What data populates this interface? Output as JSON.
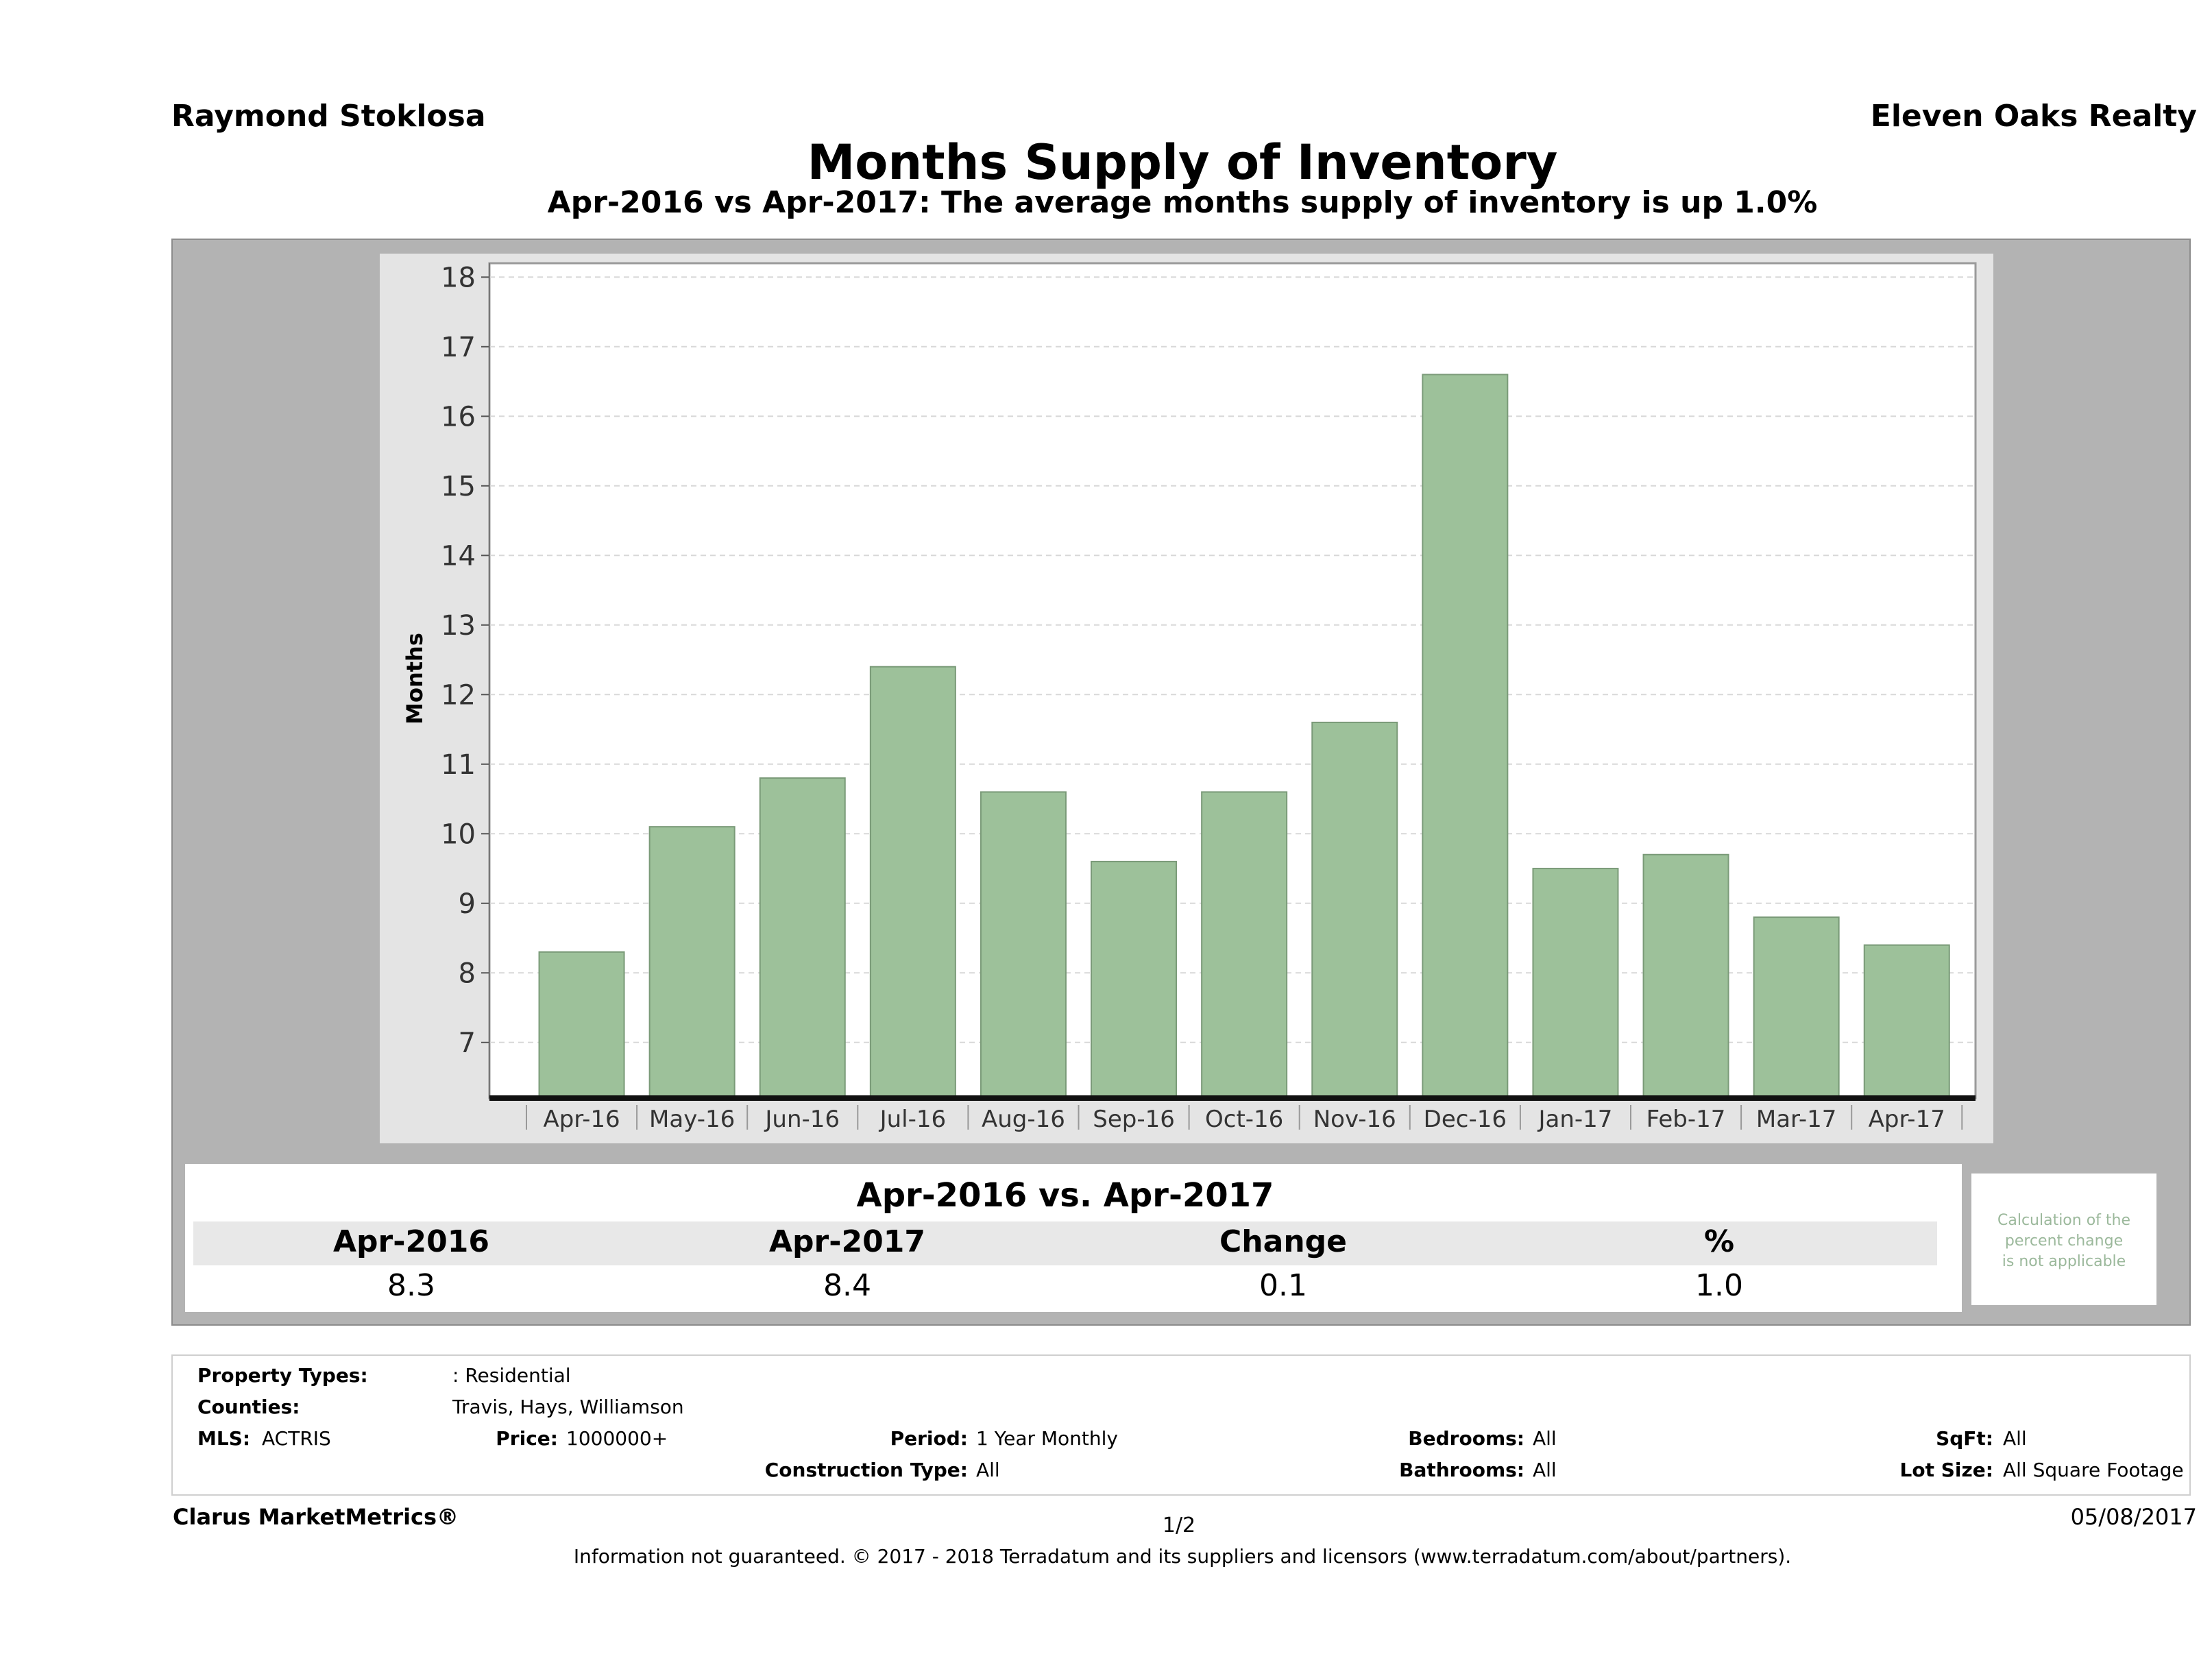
{
  "header": {
    "agent": "Raymond Stoklosa",
    "company": "Eleven Oaks Realty",
    "title": "Months Supply of Inventory",
    "subtitle": "Apr-2016 vs Apr-2017: The average months supply of inventory is up 1.0%"
  },
  "chart_data": {
    "type": "bar",
    "ylabel": "Months",
    "ylim": [
      6.2,
      18.2
    ],
    "yticks": [
      7,
      8,
      9,
      10,
      11,
      12,
      13,
      14,
      15,
      16,
      17,
      18
    ],
    "grid": true,
    "bar_color": "#9dc19a",
    "categories": [
      "Apr-16",
      "May-16",
      "Jun-16",
      "Jul-16",
      "Aug-16",
      "Sep-16",
      "Oct-16",
      "Nov-16",
      "Dec-16",
      "Jan-17",
      "Feb-17",
      "Mar-17",
      "Apr-17"
    ],
    "values": [
      8.3,
      10.1,
      10.8,
      12.4,
      10.6,
      9.6,
      10.6,
      11.6,
      16.6,
      9.5,
      9.7,
      8.8,
      8.4
    ]
  },
  "summary": {
    "title": "Apr-2016 vs. Apr-2017",
    "headers": [
      "Apr-2016",
      "Apr-2017",
      "Change",
      "%"
    ],
    "values": [
      "8.3",
      "8.4",
      "0.1",
      "1.0"
    ],
    "note_lines": [
      "Calculation of the",
      "percent change",
      "is not applicable"
    ]
  },
  "criteria": {
    "property_types_label": "Property Types:",
    "property_types_value": ": Residential",
    "counties_label": "Counties:",
    "counties_value": "Travis, Hays, Williamson",
    "mls_label": "MLS:",
    "mls_value": "ACTRIS",
    "price_label": "Price:",
    "price_value": "1000000+",
    "period_label": "Period:",
    "period_value": "1 Year Monthly",
    "construction_label": "Construction Type:",
    "construction_value": "All",
    "bedrooms_label": "Bedrooms:",
    "bedrooms_value": "All",
    "bathrooms_label": "Bathrooms:",
    "bathrooms_value": "All",
    "sqft_label": "SqFt:",
    "sqft_value": "All",
    "lotsize_label": "Lot Size:",
    "lotsize_value": "All Square Footage"
  },
  "footer": {
    "brand": "Clarus MarketMetrics®",
    "page": "1/2",
    "date": "05/08/2017",
    "disclaimer": "Information not guaranteed. © 2017 - 2018 Terradatum and its suppliers and licensors (www.terradatum.com/about/partners)."
  }
}
